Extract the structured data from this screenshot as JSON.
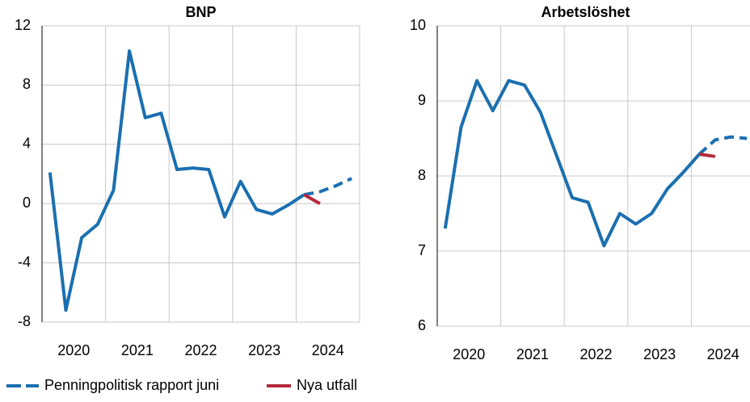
{
  "chart_data": [
    {
      "type": "line",
      "title": "BNP",
      "x": [
        2020.125,
        2020.375,
        2020.625,
        2020.875,
        2021.125,
        2021.375,
        2021.625,
        2021.875,
        2022.125,
        2022.375,
        2022.625,
        2022.875,
        2023.125,
        2023.375,
        2023.625,
        2023.875,
        2024.125,
        2024.375,
        2024.625,
        2024.875
      ],
      "xlim": [
        2020,
        2025
      ],
      "xticks": [
        {
          "value": 2020.5,
          "label": "2020"
        },
        {
          "value": 2021.5,
          "label": "2021"
        },
        {
          "value": 2022.5,
          "label": "2022"
        },
        {
          "value": 2023.5,
          "label": "2023"
        },
        {
          "value": 2024.5,
          "label": "2024"
        }
      ],
      "xgrid": [
        2021,
        2022,
        2023,
        2024
      ],
      "ylim": [
        -8,
        12
      ],
      "yticks": [
        -8,
        -4,
        0,
        4,
        8,
        12
      ],
      "grid": true,
      "series": [
        {
          "name": "Penningpolitisk rapport juni",
          "color": "#1a6fb0",
          "forecast_from": 16,
          "values": [
            2.1,
            -7.2,
            -2.3,
            -1.4,
            0.9,
            10.3,
            5.8,
            6.1,
            2.3,
            2.4,
            2.3,
            -0.9,
            1.5,
            -0.4,
            -0.7,
            -0.1,
            0.6,
            0.8,
            1.2,
            1.7
          ]
        },
        {
          "name": "Nya utfall",
          "color": "#b5283a",
          "values": [
            null,
            null,
            null,
            null,
            null,
            null,
            null,
            null,
            null,
            null,
            null,
            null,
            null,
            null,
            null,
            null,
            0.6,
            0.0,
            null,
            null
          ]
        }
      ]
    },
    {
      "type": "line",
      "title": "Arbetslöshet",
      "x": [
        2020.125,
        2020.375,
        2020.625,
        2020.875,
        2021.125,
        2021.375,
        2021.625,
        2021.875,
        2022.125,
        2022.375,
        2022.625,
        2022.875,
        2023.125,
        2023.375,
        2023.625,
        2023.875,
        2024.125,
        2024.375,
        2024.625,
        2024.875
      ],
      "xlim": [
        2020,
        2025
      ],
      "xticks": [
        {
          "value": 2020.5,
          "label": "2020"
        },
        {
          "value": 2021.5,
          "label": "2021"
        },
        {
          "value": 2022.5,
          "label": "2022"
        },
        {
          "value": 2023.5,
          "label": "2023"
        },
        {
          "value": 2024.5,
          "label": "2024"
        }
      ],
      "xgrid": [
        2021,
        2022,
        2023,
        2024
      ],
      "ylim": [
        6,
        10
      ],
      "yticks": [
        6,
        7,
        8,
        9,
        10
      ],
      "grid": true,
      "series": [
        {
          "name": "Penningpolitisk rapport juni",
          "color": "#1a6fb0",
          "forecast_from": 16,
          "values": [
            7.3,
            8.65,
            9.27,
            8.87,
            9.27,
            9.21,
            8.85,
            8.28,
            7.71,
            7.65,
            7.07,
            7.5,
            7.36,
            7.5,
            7.83,
            8.05,
            8.29,
            8.48,
            8.52,
            8.5
          ]
        },
        {
          "name": "Nya utfall",
          "color": "#b5283a",
          "values": [
            null,
            null,
            null,
            null,
            null,
            null,
            null,
            null,
            null,
            null,
            null,
            null,
            null,
            null,
            null,
            null,
            8.29,
            8.26,
            null,
            null
          ]
        }
      ]
    }
  ]
}
